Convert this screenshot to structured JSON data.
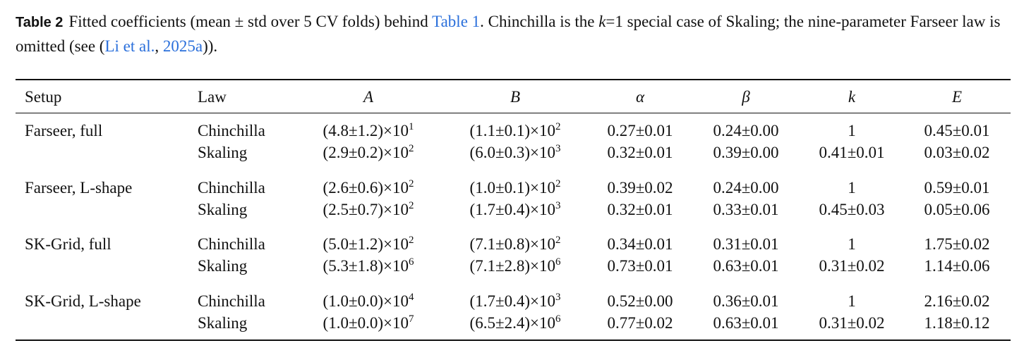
{
  "caption": {
    "label": "Table 2",
    "segments": [
      {
        "text": "Fitted coefficients (mean ± std over 5 CV folds) behind "
      },
      {
        "text": "Table 1",
        "link": true
      },
      {
        "text": ". Chinchilla is the "
      },
      {
        "text": "k",
        "italic": true
      },
      {
        "text": "=1 special case of Skaling; the nine-parameter Farseer law is omitted (see ("
      },
      {
        "text": "Li et al.",
        "link": true
      },
      {
        "text": ", "
      },
      {
        "text": "2025a",
        "link": true
      },
      {
        "text": "))."
      }
    ]
  },
  "table": {
    "columns": [
      {
        "text": "Setup"
      },
      {
        "text": "Law"
      },
      {
        "text": "A",
        "italic": true
      },
      {
        "text": "B",
        "italic": true
      },
      {
        "text": "α",
        "italic": true
      },
      {
        "text": "β",
        "italic": true
      },
      {
        "text": "k",
        "italic": true
      },
      {
        "text": "E",
        "italic": true
      }
    ],
    "groups": [
      {
        "setup": "Farseer, full",
        "rows": [
          [
            "Chinchilla",
            {
              "base": "(4.8±1.2)×10",
              "exp": "1"
            },
            {
              "base": "(1.1±0.1)×10",
              "exp": "2"
            },
            "0.27±0.01",
            "0.24±0.00",
            "1",
            "0.45±0.01"
          ],
          [
            "Skaling",
            {
              "base": "(2.9±0.2)×10",
              "exp": "2"
            },
            {
              "base": "(6.0±0.3)×10",
              "exp": "3"
            },
            "0.32±0.01",
            "0.39±0.00",
            "0.41±0.01",
            "0.03±0.02"
          ]
        ]
      },
      {
        "setup": "Farseer, L-shape",
        "rows": [
          [
            "Chinchilla",
            {
              "base": "(2.6±0.6)×10",
              "exp": "2"
            },
            {
              "base": "(1.0±0.1)×10",
              "exp": "2"
            },
            "0.39±0.02",
            "0.24±0.00",
            "1",
            "0.59±0.01"
          ],
          [
            "Skaling",
            {
              "base": "(2.5±0.7)×10",
              "exp": "2"
            },
            {
              "base": "(1.7±0.4)×10",
              "exp": "3"
            },
            "0.32±0.01",
            "0.33±0.01",
            "0.45±0.03",
            "0.05±0.06"
          ]
        ]
      },
      {
        "setup": "SK-Grid, full",
        "rows": [
          [
            "Chinchilla",
            {
              "base": "(5.0±1.2)×10",
              "exp": "2"
            },
            {
              "base": "(7.1±0.8)×10",
              "exp": "2"
            },
            "0.34±0.01",
            "0.31±0.01",
            "1",
            "1.75±0.02"
          ],
          [
            "Skaling",
            {
              "base": "(5.3±1.8)×10",
              "exp": "6"
            },
            {
              "base": "(7.1±2.8)×10",
              "exp": "6"
            },
            "0.73±0.01",
            "0.63±0.01",
            "0.31±0.02",
            "1.14±0.06"
          ]
        ]
      },
      {
        "setup": "SK-Grid, L-shape",
        "rows": [
          [
            "Chinchilla",
            {
              "base": "(1.0±0.0)×10",
              "exp": "4"
            },
            {
              "base": "(1.7±0.4)×10",
              "exp": "3"
            },
            "0.52±0.00",
            "0.36±0.01",
            "1",
            "2.16±0.02"
          ],
          [
            "Skaling",
            {
              "base": "(1.0±0.0)×10",
              "exp": "7"
            },
            {
              "base": "(6.5±2.4)×10",
              "exp": "6"
            },
            "0.77±0.02",
            "0.63±0.01",
            "0.31±0.02",
            "1.18±0.12"
          ]
        ]
      }
    ]
  }
}
